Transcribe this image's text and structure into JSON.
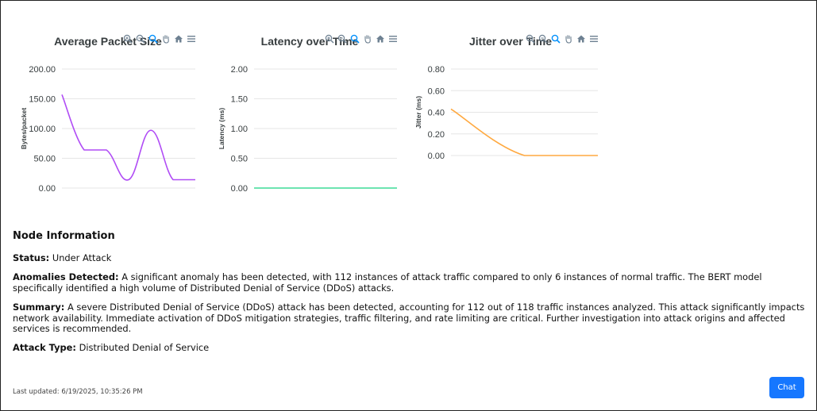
{
  "charts": {
    "toolbar_icons": [
      "zoom-in-icon",
      "zoom-out-icon",
      "zoom-select-icon",
      "pan-hand-icon",
      "home-icon",
      "menu-icon"
    ],
    "items": [
      {
        "title": "Average Packet Size",
        "ylabel": "Bytes/packet",
        "color": "#b04cf5"
      },
      {
        "title": "Latency over Time",
        "ylabel": "Latency (ms)",
        "color": "#3ddc97"
      },
      {
        "title": "Jitter over Time",
        "ylabel": "Jitter (ms)",
        "color": "#ffa940"
      }
    ]
  },
  "chart_data": [
    {
      "type": "line",
      "title": "Average Packet Size",
      "ylabel": "Bytes/packet",
      "ylim": [
        0,
        200
      ],
      "yticks": [
        "200.00",
        "150.00",
        "100.00",
        "50.00",
        "0.00"
      ],
      "x": [
        0,
        1,
        2,
        3,
        4,
        5,
        6
      ],
      "values": [
        157,
        64,
        64,
        14,
        97,
        14,
        14
      ],
      "grid": true
    },
    {
      "type": "line",
      "title": "Latency over Time",
      "ylabel": "Latency (ms)",
      "ylim": [
        0,
        2
      ],
      "yticks": [
        "2.00",
        "1.50",
        "1.00",
        "0.50",
        "0.00"
      ],
      "x": [
        0,
        1
      ],
      "values": [
        0,
        0
      ],
      "grid": true
    },
    {
      "type": "line",
      "title": "Jitter over Time",
      "ylabel": "Jitter (ms)",
      "ylim": [
        0,
        0.8
      ],
      "yticks": [
        "0.80",
        "0.60",
        "0.40",
        "0.20",
        "0.00"
      ],
      "x": [
        0,
        1,
        2
      ],
      "values": [
        0.43,
        0,
        0
      ],
      "grid": true
    }
  ],
  "node_info": {
    "heading": "Node Information",
    "status_label": "Status:",
    "status_value": "Under Attack",
    "anomalies_label": "Anomalies Detected:",
    "anomalies_value": "A significant anomaly has been detected, with 112 instances of attack traffic compared to only 6 instances of normal traffic. The BERT model specifically identified a high volume of Distributed Denial of Service (DDoS) attacks.",
    "summary_label": "Summary:",
    "summary_value": "A severe Distributed Denial of Service (DDoS) attack has been detected, accounting for 112 out of 118 traffic instances analyzed. This attack significantly impacts network availability. Immediate activation of DDoS mitigation strategies, traffic filtering, and rate limiting are critical. Further investigation into attack origins and affected services is recommended.",
    "attack_label": "Attack Type:",
    "attack_value": "Distributed Denial of Service"
  },
  "footer": {
    "last_updated": "Last updated: 6/19/2025, 10:35:26 PM"
  },
  "chat_button": {
    "label": "Chat",
    "color": "#1677ff"
  }
}
